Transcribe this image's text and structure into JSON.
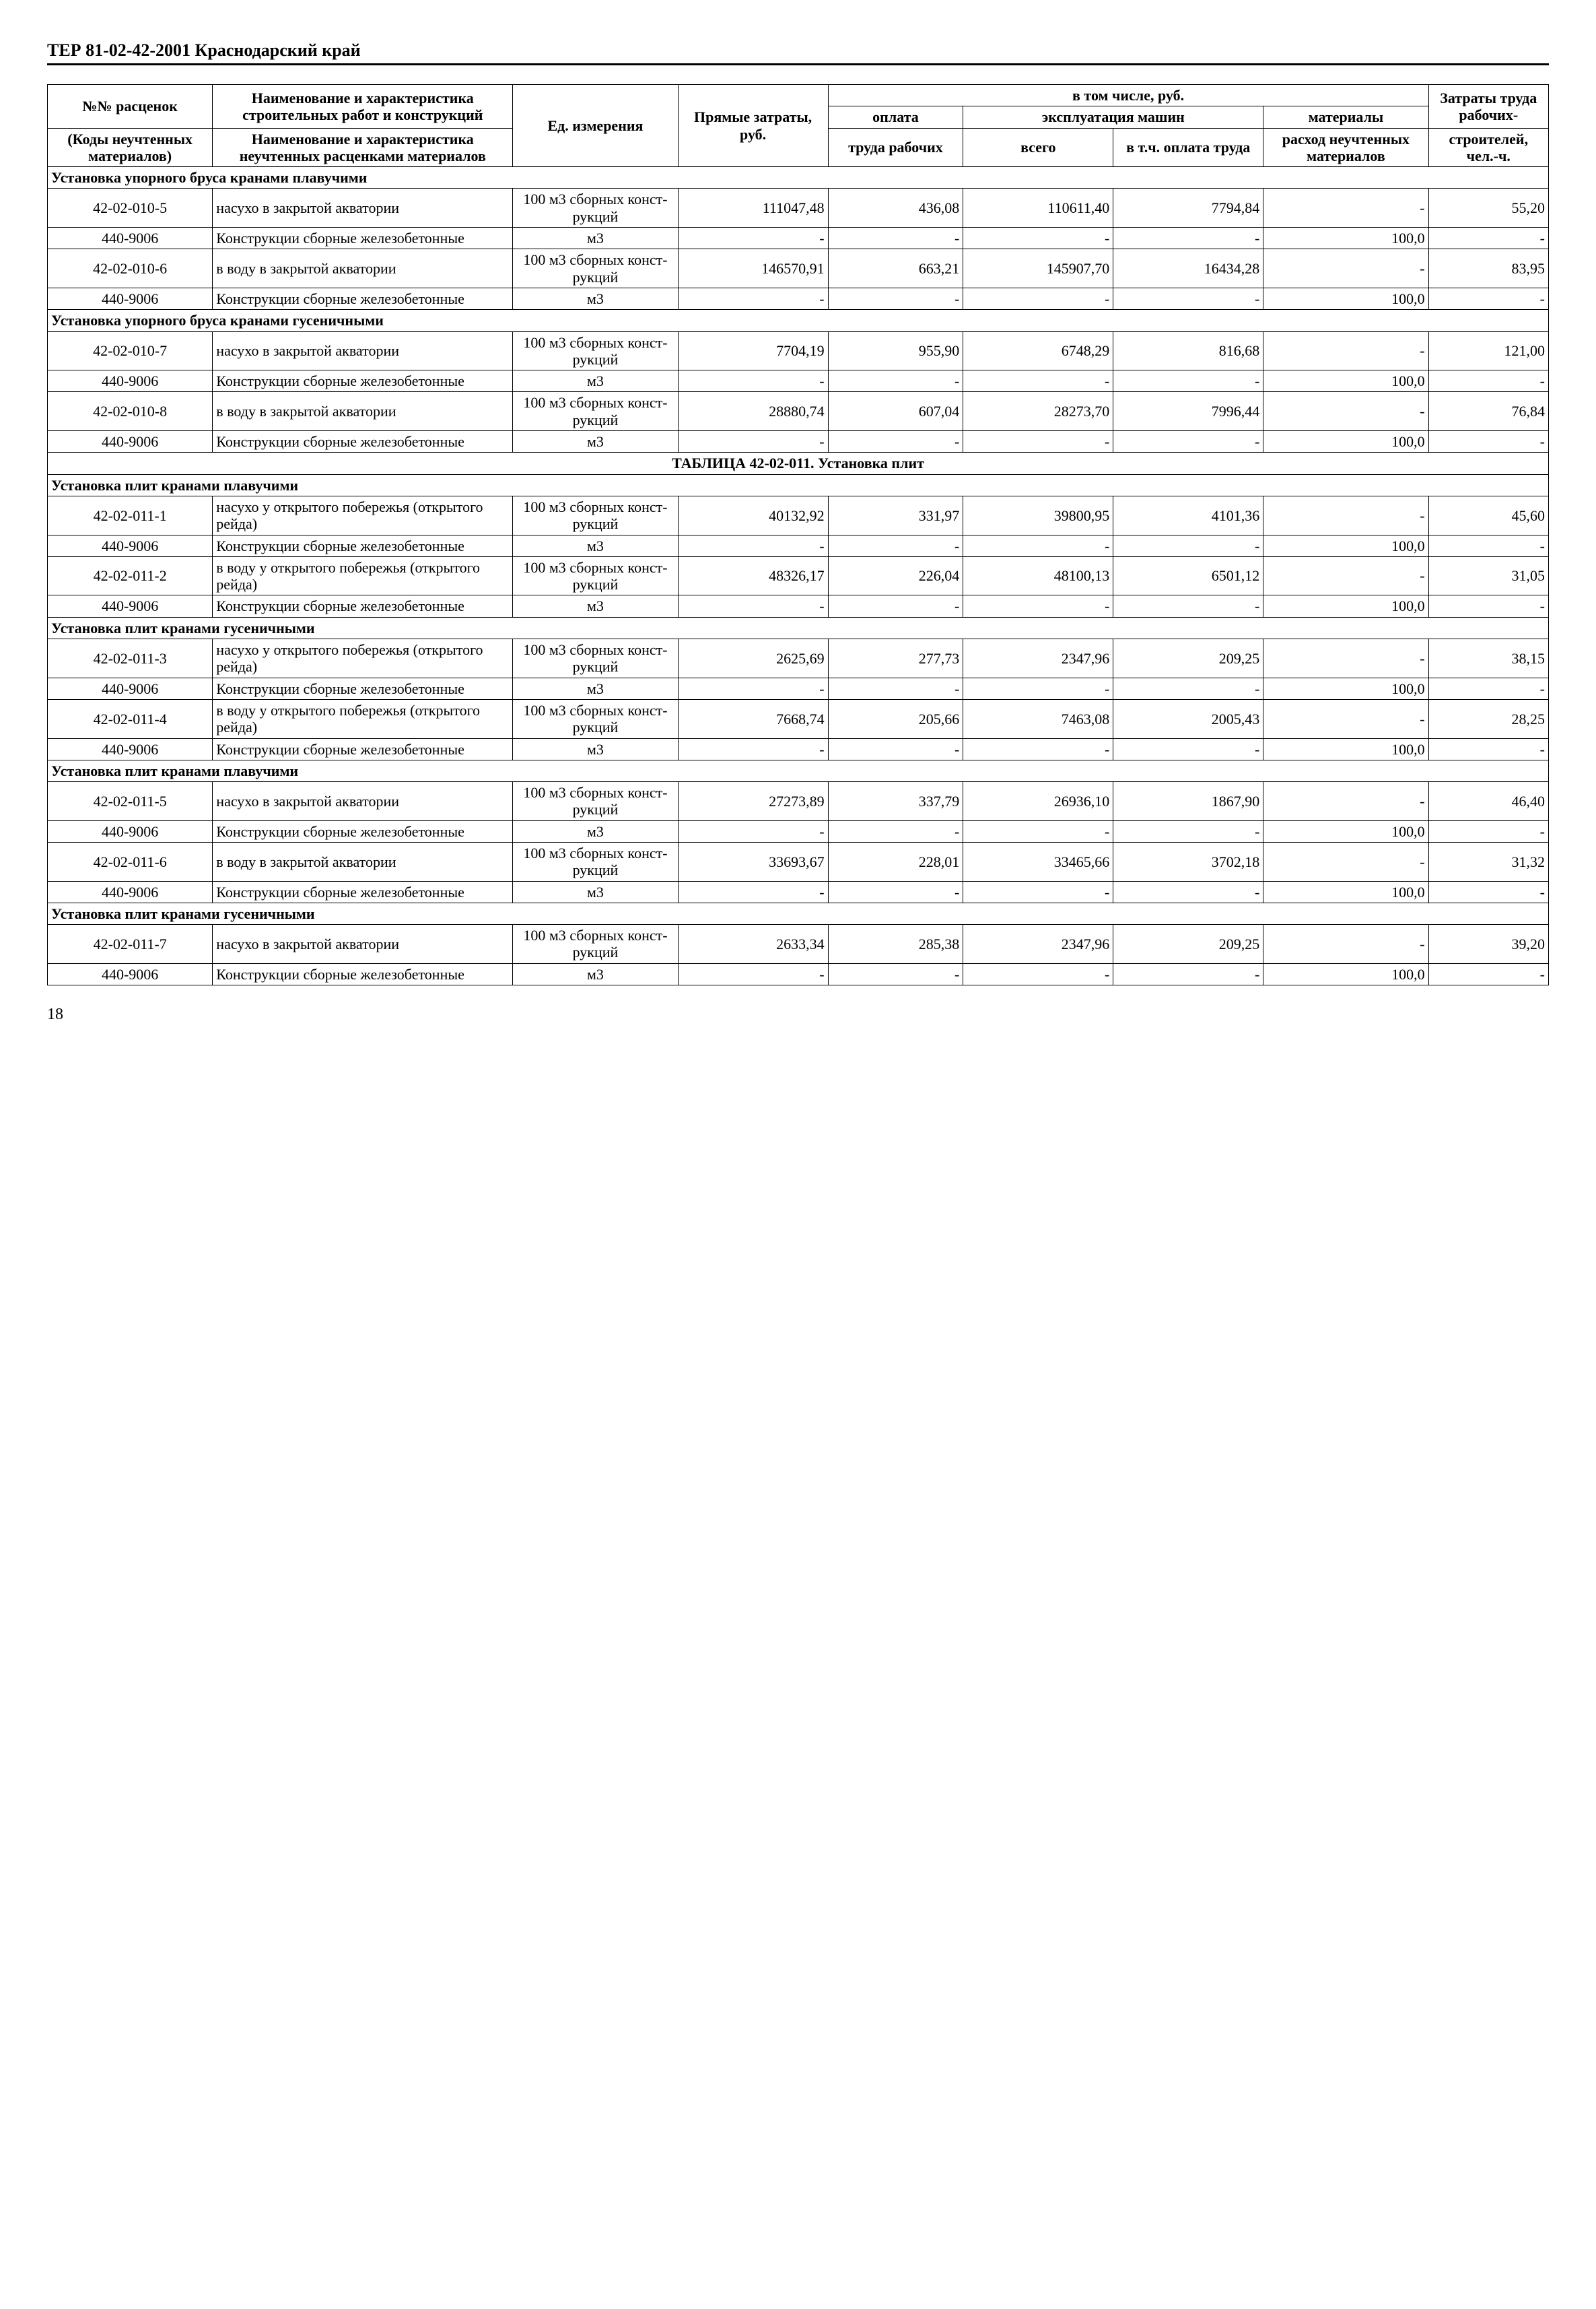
{
  "doc_header": "ТЕР 81-02-42-2001  Краснодарский край",
  "page_number": "18",
  "header": {
    "col_code_top": "№№ расценок",
    "col_code_bot": "(Коды неуч­тенных мате­риалов)",
    "col_name_top": "Наименование и характе­ристика строительных ра­бот и конструкций",
    "col_name_bot": "Наименование и характе­ристика неучтенных рас­ценками материалов",
    "col_unit": "Ед. измере­ния",
    "col_direct": "Прямые затраты, руб.",
    "group_label": "в том числе, руб.",
    "col_oplata_top": "оплата",
    "col_oplata_bot": "труда ра­бочих",
    "sub_expl": "эксплуатация ма­шин",
    "col_vsego": "всего",
    "col_oplatatr": "в т.ч. оп­лата тру­да",
    "col_mat_top": "материалы",
    "col_mat_bot": "расход не­учтенных материалов",
    "col_zatr_top": "Затраты труда ра­бочих-",
    "col_zatr_bot": "строите­лей, чел.-ч."
  },
  "rows": [
    {
      "type": "section",
      "text": "Установка упорного бруса кранами плавучими"
    },
    {
      "type": "data",
      "code": "42-02-010-5",
      "name": "насухо в закрытой аква­тории",
      "unit": "100 м3 сбор­ных конст­рукций",
      "c1": "111047,48",
      "c2": "436,08",
      "c3": "110611,40",
      "c4": "7794,84",
      "c5": "-",
      "c6": "55,20"
    },
    {
      "type": "data",
      "code": "440-9006",
      "name": "Конструкции сборные железобетонные",
      "unit": "м3",
      "c1": "-",
      "c2": "-",
      "c3": "-",
      "c4": "-",
      "c5": "100,0",
      "c6": "-"
    },
    {
      "type": "data",
      "code": "42-02-010-6",
      "name": "в воду в закрытой аквато­рии",
      "unit": "100 м3 сбор­ных конст­рукций",
      "c1": "146570,91",
      "c2": "663,21",
      "c3": "145907,70",
      "c4": "16434,28",
      "c5": "-",
      "c6": "83,95"
    },
    {
      "type": "data",
      "code": "440-9006",
      "name": "Конструкции сборные железобетонные",
      "unit": "м3",
      "c1": "-",
      "c2": "-",
      "c3": "-",
      "c4": "-",
      "c5": "100,0",
      "c6": "-"
    },
    {
      "type": "section",
      "text": "Установка упорного бруса кранами гусеничными"
    },
    {
      "type": "data",
      "code": "42-02-010-7",
      "name": "насухо в закрытой аква­тории",
      "unit": "100 м3 сбор­ных конст­рукций",
      "c1": "7704,19",
      "c2": "955,90",
      "c3": "6748,29",
      "c4": "816,68",
      "c5": "-",
      "c6": "121,00"
    },
    {
      "type": "data",
      "code": "440-9006",
      "name": "Конструкции сборные железобетонные",
      "unit": "м3",
      "c1": "-",
      "c2": "-",
      "c3": "-",
      "c4": "-",
      "c5": "100,0",
      "c6": "-"
    },
    {
      "type": "data",
      "code": "42-02-010-8",
      "name": "в воду в закрытой аквато­рии",
      "unit": "100 м3 сбор­ных конст­рукций",
      "c1": "28880,74",
      "c2": "607,04",
      "c3": "28273,70",
      "c4": "7996,44",
      "c5": "-",
      "c6": "76,84"
    },
    {
      "type": "data",
      "code": "440-9006",
      "name": "Конструкции сборные железобетонные",
      "unit": "м3",
      "c1": "-",
      "c2": "-",
      "c3": "-",
      "c4": "-",
      "c5": "100,0",
      "c6": "-"
    },
    {
      "type": "section-center",
      "text": "ТАБЛИЦА 42-02-011. Установка плит"
    },
    {
      "type": "section",
      "text": "Установка плит кранами плавучими"
    },
    {
      "type": "data",
      "code": "42-02-011-1",
      "name": "насухо у открытого побе­режья (открытого рейда)",
      "unit": "100 м3 сбор­ных конст­рукций",
      "c1": "40132,92",
      "c2": "331,97",
      "c3": "39800,95",
      "c4": "4101,36",
      "c5": "-",
      "c6": "45,60"
    },
    {
      "type": "data",
      "code": "440-9006",
      "name": "Конструкции сборные железобетонные",
      "unit": "м3",
      "c1": "-",
      "c2": "-",
      "c3": "-",
      "c4": "-",
      "c5": "100,0",
      "c6": "-"
    },
    {
      "type": "data",
      "code": "42-02-011-2",
      "name": "в воду у открытого побе­режья (открытого рейда)",
      "unit": "100 м3 сбор­ных конст­рукций",
      "c1": "48326,17",
      "c2": "226,04",
      "c3": "48100,13",
      "c4": "6501,12",
      "c5": "-",
      "c6": "31,05"
    },
    {
      "type": "data",
      "code": "440-9006",
      "name": "Конструкции сборные железобетонные",
      "unit": "м3",
      "c1": "-",
      "c2": "-",
      "c3": "-",
      "c4": "-",
      "c5": "100,0",
      "c6": "-"
    },
    {
      "type": "section",
      "text": "Установка плит кранами гусеничными"
    },
    {
      "type": "data",
      "code": "42-02-011-3",
      "name": "насухо у открытого побе­режья (открытого рейда)",
      "unit": "100 м3 сбор­ных конст­рукций",
      "c1": "2625,69",
      "c2": "277,73",
      "c3": "2347,96",
      "c4": "209,25",
      "c5": "-",
      "c6": "38,15"
    },
    {
      "type": "data",
      "code": "440-9006",
      "name": "Конструкции сборные железобетонные",
      "unit": "м3",
      "c1": "-",
      "c2": "-",
      "c3": "-",
      "c4": "-",
      "c5": "100,0",
      "c6": "-"
    },
    {
      "type": "data",
      "code": "42-02-011-4",
      "name": "в воду у открытого побе­режья (открытого рейда)",
      "unit": "100 м3 сбор­ных конст­рукций",
      "c1": "7668,74",
      "c2": "205,66",
      "c3": "7463,08",
      "c4": "2005,43",
      "c5": "-",
      "c6": "28,25"
    },
    {
      "type": "data",
      "code": "440-9006",
      "name": "Конструкции сборные железобетонные",
      "unit": "м3",
      "c1": "-",
      "c2": "-",
      "c3": "-",
      "c4": "-",
      "c5": "100,0",
      "c6": "-"
    },
    {
      "type": "section",
      "text": "Установка плит кранами плавучими"
    },
    {
      "type": "data",
      "code": "42-02-011-5",
      "name": "насухо в закрытой аква­тории",
      "unit": "100 м3 сбор­ных конст­рукций",
      "c1": "27273,89",
      "c2": "337,79",
      "c3": "26936,10",
      "c4": "1867,90",
      "c5": "-",
      "c6": "46,40"
    },
    {
      "type": "data",
      "code": "440-9006",
      "name": "Конструкции сборные железобетонные",
      "unit": "м3",
      "c1": "-",
      "c2": "-",
      "c3": "-",
      "c4": "-",
      "c5": "100,0",
      "c6": "-"
    },
    {
      "type": "data",
      "code": "42-02-011-6",
      "name": "в воду в закрытой аквато­рии",
      "unit": "100 м3 сбор­ных конст­рукций",
      "c1": "33693,67",
      "c2": "228,01",
      "c3": "33465,66",
      "c4": "3702,18",
      "c5": "-",
      "c6": "31,32"
    },
    {
      "type": "data",
      "code": "440-9006",
      "name": "Конструкции сборные железобетонные",
      "unit": "м3",
      "c1": "-",
      "c2": "-",
      "c3": "-",
      "c4": "-",
      "c5": "100,0",
      "c6": "-"
    },
    {
      "type": "section",
      "text": "Установка плит кранами гусеничными"
    },
    {
      "type": "data",
      "code": "42-02-011-7",
      "name": "насухо в закрытой аква­тории",
      "unit": "100 м3 сбор­ных конст­рукций",
      "c1": "2633,34",
      "c2": "285,38",
      "c3": "2347,96",
      "c4": "209,25",
      "c5": "-",
      "c6": "39,20"
    },
    {
      "type": "data",
      "code": "440-9006",
      "name": "Конструкции сборные железобетонные",
      "unit": "м3",
      "c1": "-",
      "c2": "-",
      "c3": "-",
      "c4": "-",
      "c5": "100,0",
      "c6": "-"
    }
  ]
}
